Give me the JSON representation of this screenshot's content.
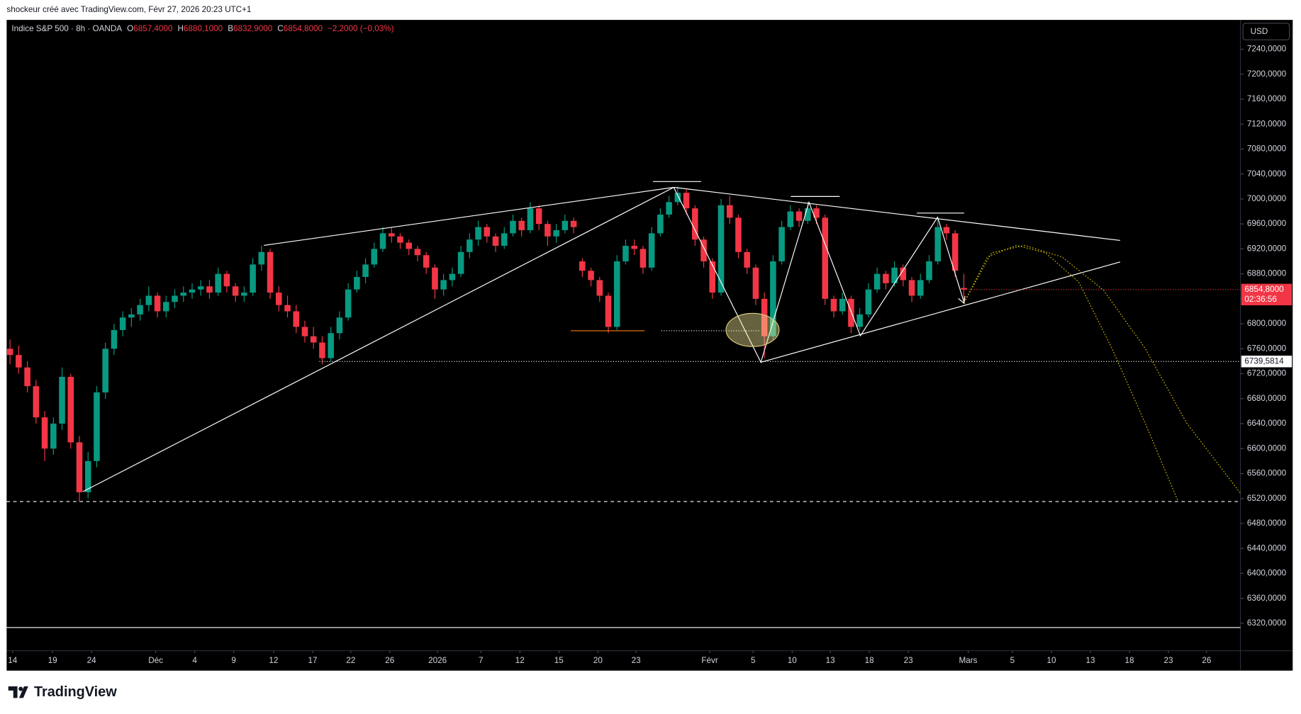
{
  "header": {
    "credit": "shockeur créé avec TradingView.com, Févr 27, 2026 20:23 UTC+1",
    "symbol": "Indice S&P 500 · 8h · OANDA",
    "ohlc": [
      {
        "key": "O",
        "value": "6857,4000"
      },
      {
        "key": "H",
        "value": "6880,1000"
      },
      {
        "key": "B",
        "value": "6832,9000"
      },
      {
        "key": "C",
        "value": "6854,8000"
      }
    ],
    "change": "−2,2000 (−0,03%)"
  },
  "logo": "TradingView",
  "chart_data": {
    "type": "candlestick",
    "currency": "USD",
    "up_color": "#089981",
    "down_color": "#f23645",
    "xlim": [
      -0.2,
      141.9
    ],
    "ylim": [
      6276,
      7287
    ],
    "xticks": [
      {
        "value": 0.3,
        "label": "14"
      },
      {
        "value": 4.9,
        "label": "19"
      },
      {
        "value": 9.4,
        "label": "24"
      },
      {
        "value": 16.8,
        "label": "Déc"
      },
      {
        "value": 21.3,
        "label": "4"
      },
      {
        "value": 25.8,
        "label": "9"
      },
      {
        "value": 30.4,
        "label": "12"
      },
      {
        "value": 34.9,
        "label": "17"
      },
      {
        "value": 39.3,
        "label": "22"
      },
      {
        "value": 43.8,
        "label": "26"
      },
      {
        "value": 49.3,
        "label": "2026"
      },
      {
        "value": 54.3,
        "label": "7"
      },
      {
        "value": 58.8,
        "label": "12"
      },
      {
        "value": 63.3,
        "label": "15"
      },
      {
        "value": 67.8,
        "label": "20"
      },
      {
        "value": 72.2,
        "label": "23"
      },
      {
        "value": 80.7,
        "label": "Févr"
      },
      {
        "value": 85.7,
        "label": "5"
      },
      {
        "value": 90.2,
        "label": "10"
      },
      {
        "value": 94.6,
        "label": "13"
      },
      {
        "value": 99.1,
        "label": "18"
      },
      {
        "value": 103.6,
        "label": "23"
      },
      {
        "value": 110.5,
        "label": "Mars"
      },
      {
        "value": 115.6,
        "label": "5"
      },
      {
        "value": 120.1,
        "label": "10"
      },
      {
        "value": 124.6,
        "label": "13"
      },
      {
        "value": 129.1,
        "label": "18"
      },
      {
        "value": 133.6,
        "label": "23"
      },
      {
        "value": 138.0,
        "label": "26"
      }
    ],
    "yticks": [
      {
        "value": 7240,
        "label": "7240,0000"
      },
      {
        "value": 7200,
        "label": "7200,0000"
      },
      {
        "value": 7160,
        "label": "7160,0000"
      },
      {
        "value": 7120,
        "label": "7120,0000"
      },
      {
        "value": 7080,
        "label": "7080,0000"
      },
      {
        "value": 7040,
        "label": "7040,0000"
      },
      {
        "value": 7000,
        "label": "7000,0000"
      },
      {
        "value": 6960,
        "label": "6960,0000"
      },
      {
        "value": 6920,
        "label": "6920,0000"
      },
      {
        "value": 6880,
        "label": "6880,0000"
      },
      {
        "value": 6840,
        "label": "6840,0000"
      },
      {
        "value": 6800,
        "label": "6800,0000"
      },
      {
        "value": 6760,
        "label": "6760,0000"
      },
      {
        "value": 6720,
        "label": "6720,0000"
      },
      {
        "value": 6680,
        "label": "6680,0000"
      },
      {
        "value": 6640,
        "label": "6640,0000"
      },
      {
        "value": 6600,
        "label": "6600,0000"
      },
      {
        "value": 6560,
        "label": "6560,0000"
      },
      {
        "value": 6520,
        "label": "6520,0000"
      },
      {
        "value": 6480,
        "label": "6480,0000"
      },
      {
        "value": 6440,
        "label": "6440,0000"
      },
      {
        "value": 6400,
        "label": "6400,0000"
      },
      {
        "value": 6360,
        "label": "6360,0000"
      },
      {
        "value": 6320,
        "label": "6320,0000"
      }
    ],
    "last_price": {
      "value": 6854.8,
      "label": "6854,8000",
      "countdown": "02:36:56"
    },
    "marker_line": {
      "value": 6739.5814,
      "label": "6739,5814"
    },
    "candles": [
      [
        6760,
        6775,
        6735,
        6750
      ],
      [
        6750,
        6765,
        6720,
        6730
      ],
      [
        6730,
        6740,
        6690,
        6700
      ],
      [
        6700,
        6710,
        6640,
        6650
      ],
      [
        6650,
        6660,
        6580,
        6600
      ],
      [
        6600,
        6650,
        6590,
        6640
      ],
      [
        6640,
        6730,
        6630,
        6715
      ],
      [
        6715,
        6720,
        6600,
        6610
      ],
      [
        6610,
        6620,
        6515,
        6530
      ],
      [
        6530,
        6595,
        6520,
        6580
      ],
      [
        6580,
        6700,
        6570,
        6690
      ],
      [
        6690,
        6770,
        6680,
        6760
      ],
      [
        6760,
        6800,
        6750,
        6790
      ],
      [
        6790,
        6820,
        6780,
        6810
      ],
      [
        6810,
        6825,
        6795,
        6815
      ],
      [
        6815,
        6840,
        6805,
        6830
      ],
      [
        6830,
        6860,
        6820,
        6845
      ],
      [
        6845,
        6850,
        6810,
        6820
      ],
      [
        6820,
        6845,
        6810,
        6835
      ],
      [
        6835,
        6855,
        6825,
        6845
      ],
      [
        6845,
        6860,
        6835,
        6850
      ],
      [
        6850,
        6865,
        6840,
        6855
      ],
      [
        6855,
        6870,
        6845,
        6860
      ],
      [
        6860,
        6870,
        6840,
        6850
      ],
      [
        6850,
        6890,
        6845,
        6880
      ],
      [
        6880,
        6885,
        6850,
        6860
      ],
      [
        6860,
        6865,
        6835,
        6845
      ],
      [
        6845,
        6860,
        6835,
        6850
      ],
      [
        6850,
        6905,
        6845,
        6895
      ],
      [
        6895,
        6925,
        6885,
        6915
      ],
      [
        6915,
        6920,
        6840,
        6850
      ],
      [
        6850,
        6860,
        6820,
        6830
      ],
      [
        6830,
        6845,
        6810,
        6820
      ],
      [
        6820,
        6830,
        6785,
        6795
      ],
      [
        6795,
        6805,
        6770,
        6780
      ],
      [
        6780,
        6795,
        6760,
        6770
      ],
      [
        6770,
        6780,
        6735,
        6745
      ],
      [
        6745,
        6795,
        6740,
        6785
      ],
      [
        6785,
        6820,
        6775,
        6810
      ],
      [
        6810,
        6865,
        6805,
        6855
      ],
      [
        6855,
        6885,
        6850,
        6875
      ],
      [
        6875,
        6905,
        6865,
        6895
      ],
      [
        6895,
        6930,
        6890,
        6920
      ],
      [
        6920,
        6955,
        6915,
        6945
      ],
      [
        6945,
        6955,
        6930,
        6940
      ],
      [
        6940,
        6945,
        6920,
        6930
      ],
      [
        6930,
        6935,
        6910,
        6920
      ],
      [
        6920,
        6925,
        6900,
        6910
      ],
      [
        6910,
        6915,
        6880,
        6890
      ],
      [
        6890,
        6895,
        6840,
        6855
      ],
      [
        6855,
        6880,
        6845,
        6870
      ],
      [
        6870,
        6890,
        6860,
        6880
      ],
      [
        6880,
        6925,
        6875,
        6915
      ],
      [
        6915,
        6945,
        6905,
        6935
      ],
      [
        6935,
        6965,
        6925,
        6955
      ],
      [
        6955,
        6960,
        6930,
        6940
      ],
      [
        6940,
        6945,
        6915,
        6925
      ],
      [
        6925,
        6955,
        6920,
        6945
      ],
      [
        6945,
        6975,
        6940,
        6965
      ],
      [
        6965,
        6970,
        6940,
        6950
      ],
      [
        6950,
        6995,
        6945,
        6985
      ],
      [
        6985,
        6990,
        6950,
        6960
      ],
      [
        6960,
        6965,
        6925,
        6940
      ],
      [
        6940,
        6960,
        6930,
        6950
      ],
      [
        6950,
        6975,
        6945,
        6965
      ],
      [
        6965,
        6970,
        6945,
        6955
      ],
      [
        6900,
        6905,
        6875,
        6885
      ],
      [
        6885,
        6890,
        6860,
        6870
      ],
      [
        6870,
        6875,
        6835,
        6845
      ],
      [
        6845,
        6850,
        6785,
        6795
      ],
      [
        6795,
        6910,
        6790,
        6900
      ],
      [
        6900,
        6935,
        6895,
        6925
      ],
      [
        6925,
        6935,
        6910,
        6920
      ],
      [
        6920,
        6925,
        6880,
        6890
      ],
      [
        6890,
        6955,
        6885,
        6945
      ],
      [
        6945,
        6985,
        6940,
        6975
      ],
      [
        6975,
        7005,
        6970,
        6995
      ],
      [
        6995,
        7020,
        6990,
        7010
      ],
      [
        7010,
        7015,
        6975,
        6985
      ],
      [
        6985,
        6990,
        6925,
        6935
      ],
      [
        6935,
        6940,
        6890,
        6900
      ],
      [
        6900,
        6905,
        6840,
        6850
      ],
      [
        6850,
        7000,
        6845,
        6990
      ],
      [
        6990,
        7005,
        6960,
        6970
      ],
      [
        6970,
        6975,
        6905,
        6915
      ],
      [
        6915,
        6920,
        6880,
        6890
      ],
      [
        6890,
        6895,
        6830,
        6840
      ],
      [
        6840,
        6850,
        6745,
        6780
      ],
      [
        6780,
        6910,
        6775,
        6900
      ],
      [
        6900,
        6965,
        6895,
        6955
      ],
      [
        6955,
        6990,
        6950,
        6980
      ],
      [
        6980,
        6985,
        6955,
        6965
      ],
      [
        6965,
        6995,
        6960,
        6985
      ],
      [
        6985,
        6990,
        6960,
        6970
      ],
      [
        6970,
        6975,
        6830,
        6840
      ],
      [
        6840,
        6845,
        6810,
        6820
      ],
      [
        6820,
        6850,
        6815,
        6840
      ],
      [
        6840,
        6845,
        6785,
        6795
      ],
      [
        6795,
        6825,
        6790,
        6815
      ],
      [
        6815,
        6865,
        6810,
        6855
      ],
      [
        6855,
        6890,
        6850,
        6880
      ],
      [
        6880,
        6885,
        6855,
        6865
      ],
      [
        6865,
        6900,
        6860,
        6890
      ],
      [
        6890,
        6895,
        6860,
        6870
      ],
      [
        6870,
        6875,
        6835,
        6845
      ],
      [
        6845,
        6880,
        6840,
        6870
      ],
      [
        6870,
        6910,
        6865,
        6900
      ],
      [
        6900,
        6970,
        6895,
        6955
      ],
      [
        6955,
        6960,
        6935,
        6945
      ],
      [
        6945,
        6950,
        6875,
        6885
      ],
      [
        6857.4,
        6880.1,
        6832.9,
        6854.8
      ]
    ]
  }
}
